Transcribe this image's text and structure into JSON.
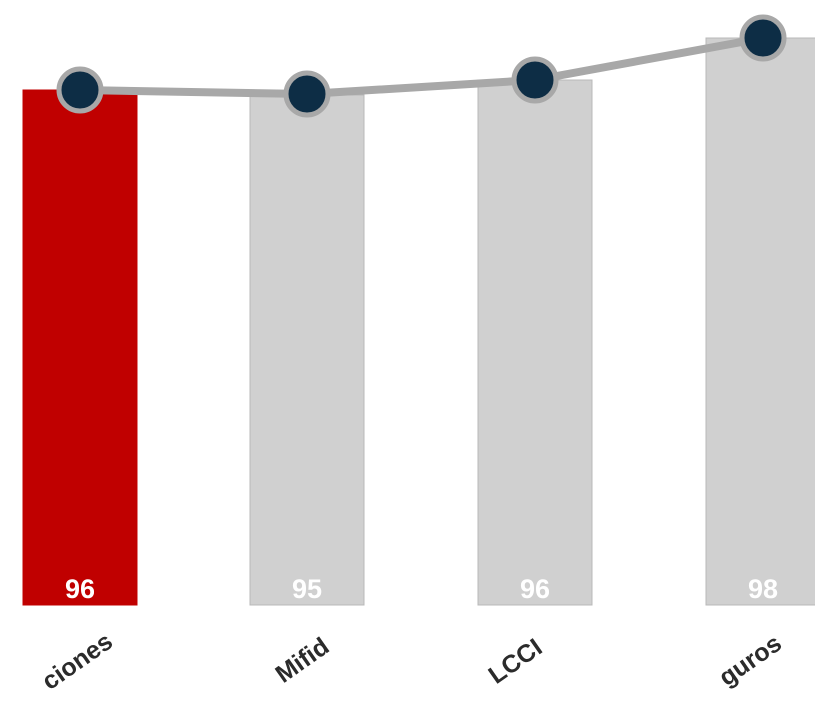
{
  "chart_data": {
    "type": "bar",
    "categories": [
      "ciones",
      "Mifid",
      "LCCI",
      "guros"
    ],
    "values": [
      96,
      95,
      96,
      98
    ],
    "data_labels": [
      "96",
      "95",
      "96",
      "98"
    ],
    "line_values": [
      96,
      95,
      96,
      98
    ],
    "title": "",
    "xlabel": "",
    "ylabel": "",
    "grid": false,
    "legend": "none",
    "colors": {
      "highlight_bar": "#c00000",
      "bar": "#d0d0d0",
      "bar_border": "#b8b8b8",
      "line": "#a8a8a8",
      "marker_fill": "#0d2d45",
      "marker_ring": "#a8a8a8",
      "label": "#ffffff",
      "category_text": "#2b2b2b"
    },
    "highlight_index": 0
  }
}
